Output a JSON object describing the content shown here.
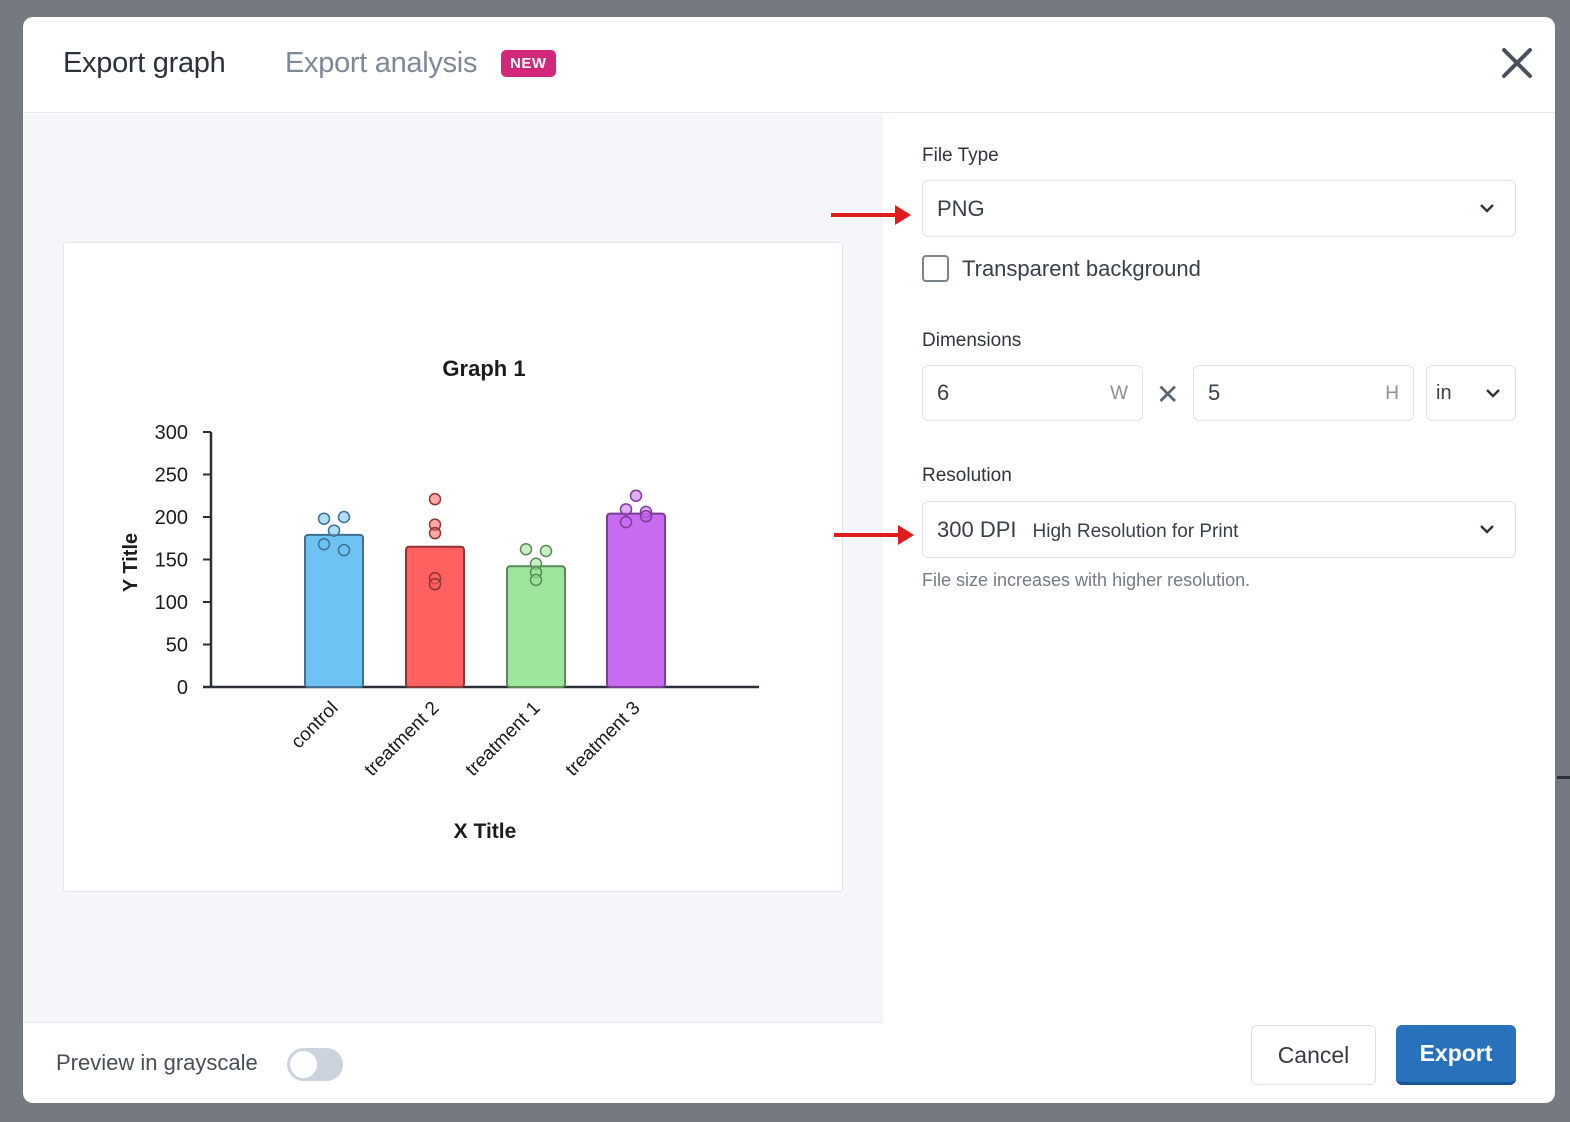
{
  "header": {
    "tabs": [
      {
        "label": "Export graph",
        "active": true
      },
      {
        "label": "Export analysis",
        "active": false,
        "badge": "NEW"
      }
    ],
    "close_icon": "close-icon"
  },
  "settings": {
    "file_type": {
      "label": "File Type",
      "value": "PNG"
    },
    "transparent_background": {
      "label": "Transparent background",
      "checked": false
    },
    "dimensions": {
      "label": "Dimensions",
      "width": "6",
      "width_unit": "W",
      "height": "5",
      "height_unit": "H",
      "times": "✕",
      "unit": "in"
    },
    "resolution": {
      "label": "Resolution",
      "value": "300 DPI",
      "description": "High Resolution for Print",
      "hint": "File size increases with higher resolution."
    }
  },
  "footer": {
    "grayscale_label": "Preview in grayscale",
    "grayscale_on": false,
    "cancel_label": "Cancel",
    "export_label": "Export"
  },
  "colors": {
    "badge": "#d2287a",
    "export_button": "#2872bb",
    "annotation_arrow": "#e01c1c"
  },
  "chart_data": {
    "type": "bar",
    "title": "Graph 1",
    "xlabel": "X Title",
    "ylabel": "Y Title",
    "ylim": [
      0,
      300
    ],
    "yticks": [
      0,
      50,
      100,
      150,
      200,
      250,
      300
    ],
    "grid": false,
    "categories": [
      "control",
      "treatment 2",
      "treatment 1",
      "treatment 3"
    ],
    "values": [
      179,
      165,
      142,
      204
    ],
    "points": [
      [
        198,
        200,
        184,
        168,
        161
      ],
      [
        221,
        191,
        181,
        128,
        121
      ],
      [
        162,
        160,
        145,
        135,
        126
      ],
      [
        225,
        209,
        206,
        201,
        194
      ]
    ],
    "bar_colors": [
      "#6ec3f4",
      "#ff6161",
      "#9de59a",
      "#c86bf0"
    ],
    "edge_colors": [
      "#3f7190",
      "#8e3535",
      "#5a8a58",
      "#7a3d95"
    ]
  }
}
